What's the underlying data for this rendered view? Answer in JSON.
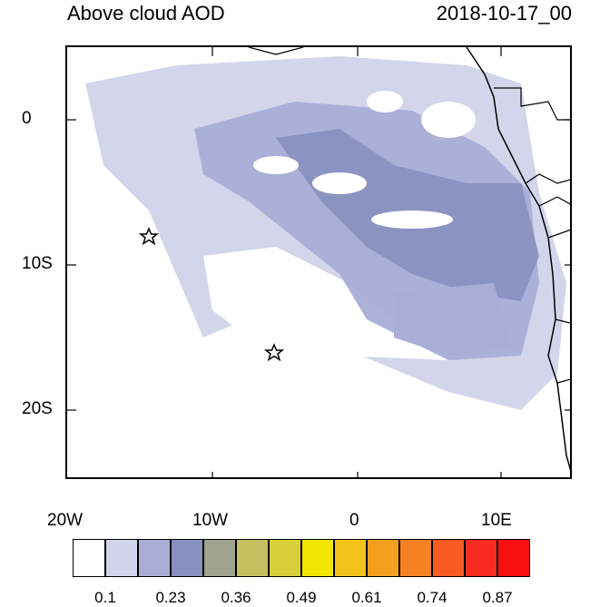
{
  "header": {
    "title": "Above cloud AOD",
    "date": "2018-10-17_00"
  },
  "map": {
    "lon_ticks": [
      "20W",
      "10W",
      "0",
      "10E"
    ],
    "lat_ticks": [
      "0",
      "10S",
      "20S"
    ],
    "extent": {
      "lon": [
        -20,
        15
      ],
      "lat": [
        -25,
        5
      ]
    },
    "markers": [
      {
        "name": "star-1",
        "lon": -14.2,
        "lat": -8.0
      },
      {
        "name": "star-2",
        "lon": -5.8,
        "lat": -16.0
      }
    ]
  },
  "colorbar": {
    "labels": [
      "0.1",
      "0.23",
      "0.36",
      "0.49",
      "0.61",
      "0.74",
      "0.87"
    ],
    "colors": [
      "#ffffff",
      "#d1d4ea",
      "#a8aed6",
      "#8790bf",
      "#9ea38e",
      "#c5c05f",
      "#d9cf3a",
      "#f0e800",
      "#f3c218",
      "#f2a01e",
      "#f68224",
      "#f85a22",
      "#f82c20",
      "#f80f0f"
    ]
  }
}
